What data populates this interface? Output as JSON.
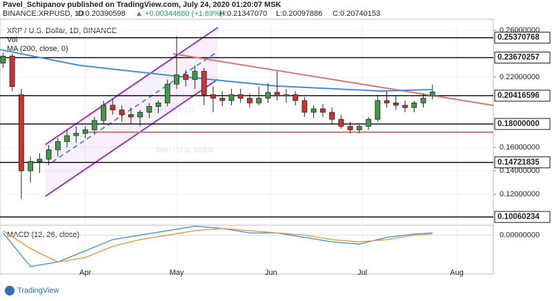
{
  "chart_data": {
    "type": "candlestick",
    "publisher": "Pavel_Schipanov published on TradingView.com, July 24, 2020 01:20:07 MSK",
    "symbol": "BINANCE:XRPUSD, 1D",
    "ohlc_text": [
      "O:0.20390598",
      "H:0.21347070",
      "L:0.20097886",
      "C:0.20740153"
    ],
    "change_text": "▲ +0.00344680 (+1.69%)",
    "legend": [
      "XRP / U.S. Dollar, 1D, BINANCE",
      "Vol",
      "MA (200, close, 0)"
    ],
    "watermark": "XRPUSD, 1D",
    "watermark_sub": "XRP / U.S. Dollar",
    "brand": "TradingView",
    "up_color": "#3f9b3f",
    "down_color": "#d0312d",
    "x": [
      65,
      68,
      71,
      74,
      77,
      80,
      83,
      86,
      89,
      92,
      95,
      98,
      101,
      104,
      107,
      110,
      113,
      116,
      119,
      122,
      125,
      128,
      131,
      134,
      137,
      140,
      143,
      146,
      149,
      152,
      155,
      158,
      161,
      164,
      167,
      170,
      173,
      176,
      179,
      182,
      185,
      188,
      191,
      194,
      197,
      200,
      203,
      206
    ],
    "open": [
      0.232,
      0.238,
      0.205,
      0.14,
      0.148,
      0.15,
      0.158,
      0.165,
      0.17,
      0.172,
      0.175,
      0.183,
      0.196,
      0.192,
      0.188,
      0.186,
      0.19,
      0.195,
      0.198,
      0.214,
      0.222,
      0.218,
      0.225,
      0.205,
      0.202,
      0.2,
      0.205,
      0.202,
      0.198,
      0.202,
      0.207,
      0.204,
      0.205,
      0.2,
      0.19,
      0.193,
      0.19,
      0.184,
      0.178,
      0.175,
      0.178,
      0.184,
      0.2,
      0.198,
      0.196,
      0.194,
      0.198,
      0.20390598
    ],
    "high": [
      0.241,
      0.24,
      0.21,
      0.152,
      0.155,
      0.162,
      0.168,
      0.175,
      0.178,
      0.178,
      0.186,
      0.2,
      0.202,
      0.196,
      0.194,
      0.192,
      0.198,
      0.2,
      0.218,
      0.255,
      0.226,
      0.23,
      0.228,
      0.212,
      0.208,
      0.21,
      0.21,
      0.206,
      0.212,
      0.215,
      0.225,
      0.21,
      0.208,
      0.203,
      0.196,
      0.197,
      0.194,
      0.188,
      0.182,
      0.18,
      0.186,
      0.205,
      0.208,
      0.204,
      0.2,
      0.2,
      0.206,
      0.2134707
    ],
    "low": [
      0.228,
      0.208,
      0.116,
      0.13,
      0.138,
      0.145,
      0.152,
      0.16,
      0.164,
      0.168,
      0.172,
      0.18,
      0.188,
      0.182,
      0.18,
      0.178,
      0.185,
      0.189,
      0.195,
      0.21,
      0.212,
      0.21,
      0.196,
      0.19,
      0.195,
      0.196,
      0.198,
      0.194,
      0.196,
      0.198,
      0.2,
      0.198,
      0.196,
      0.186,
      0.185,
      0.186,
      0.18,
      0.176,
      0.172,
      0.172,
      0.175,
      0.182,
      0.194,
      0.192,
      0.19,
      0.19,
      0.194,
      0.20097886
    ],
    "close": [
      0.238,
      0.212,
      0.14,
      0.148,
      0.15,
      0.158,
      0.165,
      0.17,
      0.172,
      0.175,
      0.183,
      0.196,
      0.192,
      0.188,
      0.186,
      0.19,
      0.195,
      0.198,
      0.214,
      0.222,
      0.218,
      0.225,
      0.205,
      0.202,
      0.2,
      0.205,
      0.202,
      0.198,
      0.202,
      0.207,
      0.204,
      0.205,
      0.2,
      0.19,
      0.193,
      0.19,
      0.184,
      0.178,
      0.175,
      0.178,
      0.184,
      0.2,
      0.198,
      0.196,
      0.194,
      0.198,
      0.202,
      0.20740153
    ],
    "xlim": [
      64,
      226
    ],
    "ylim": [
      0.0947,
      0.2653
    ],
    "yticks": [
      {
        "value": 0.26,
        "label": "0.26000000"
      },
      {
        "value": 0.22,
        "label": "0.22000000"
      },
      {
        "value": 0.16,
        "label": "0.16000000"
      },
      {
        "value": 0.14,
        "label": "0.14000000"
      },
      {
        "value": 0.12,
        "label": "0.12000000"
      }
    ],
    "xticks": [
      {
        "value": 92,
        "label": "Apr"
      },
      {
        "value": 122,
        "label": "May"
      },
      {
        "value": 153,
        "label": "Jun"
      },
      {
        "value": 183,
        "label": "Jul"
      },
      {
        "value": 214,
        "label": "Aug"
      }
    ],
    "levels": [
      {
        "value": 0.25370768,
        "label": "0.25370768"
      },
      {
        "value": 0.23670257,
        "label": "0.23670257"
      },
      {
        "value": 0.20416596,
        "label": "0.20416596"
      },
      {
        "value": 0.18,
        "label": "0.18000000"
      },
      {
        "value": 0.14721835,
        "label": "0.14721835"
      },
      {
        "value": 0.10060234,
        "label": "0.10060234"
      }
    ],
    "ma": {
      "color": "#3d8fd8",
      "x": [
        64.1,
        90.2,
        120.8,
        154.8,
        188.8,
        205.8
      ],
      "values": [
        0.2435,
        0.23,
        0.2212,
        0.2124,
        0.2082,
        0.2094
      ]
    },
    "trendline": {
      "color": "#d9746f",
      "x": [
        120.8,
        226
      ],
      "values": [
        0.24,
        0.1959
      ]
    },
    "support": {
      "color": "#d9746f",
      "x": [
        92.6,
        226
      ],
      "values": [
        0.173,
        0.173
      ]
    },
    "channel": {
      "color": "#9b30c8",
      "upper_x": [
        78.9,
        135.5
      ],
      "upper": [
        0.1624,
        0.2624
      ],
      "lower_x": [
        78.9,
        135.5
      ],
      "lower": [
        0.1182,
        0.2182
      ],
      "mid_x": [
        81.2,
        135.5
      ],
      "mid": [
        0.1476,
        0.2418
      ]
    },
    "macd": {
      "label": "MACD (12, 26, close)",
      "ylim": [
        -0.0165,
        0.0035
      ],
      "yticks": [
        {
          "value": 0,
          "label": "0.00000000"
        }
      ],
      "x": [
        65,
        74,
        83,
        92,
        101,
        110,
        119,
        128,
        137,
        146,
        155,
        164,
        173,
        182,
        191,
        200,
        206
      ],
      "series": [
        {
          "color": "#2f8ee0",
          "values": [
            0.001,
            -0.014,
            -0.012,
            -0.007,
            -0.002,
            0.0,
            0.002,
            0.004,
            0.003,
            0.001,
            0.001,
            -0.001,
            -0.003,
            -0.004,
            -0.001,
            0.0005,
            0.001
          ]
        },
        {
          "color": "#f08c2c",
          "values": [
            0.002,
            -0.006,
            -0.012,
            -0.01,
            -0.005,
            -0.002,
            0.0,
            0.002,
            0.003,
            0.002,
            0.001,
            0.0,
            -0.002,
            -0.003,
            -0.002,
            0.0,
            0.0005
          ]
        }
      ]
    }
  }
}
